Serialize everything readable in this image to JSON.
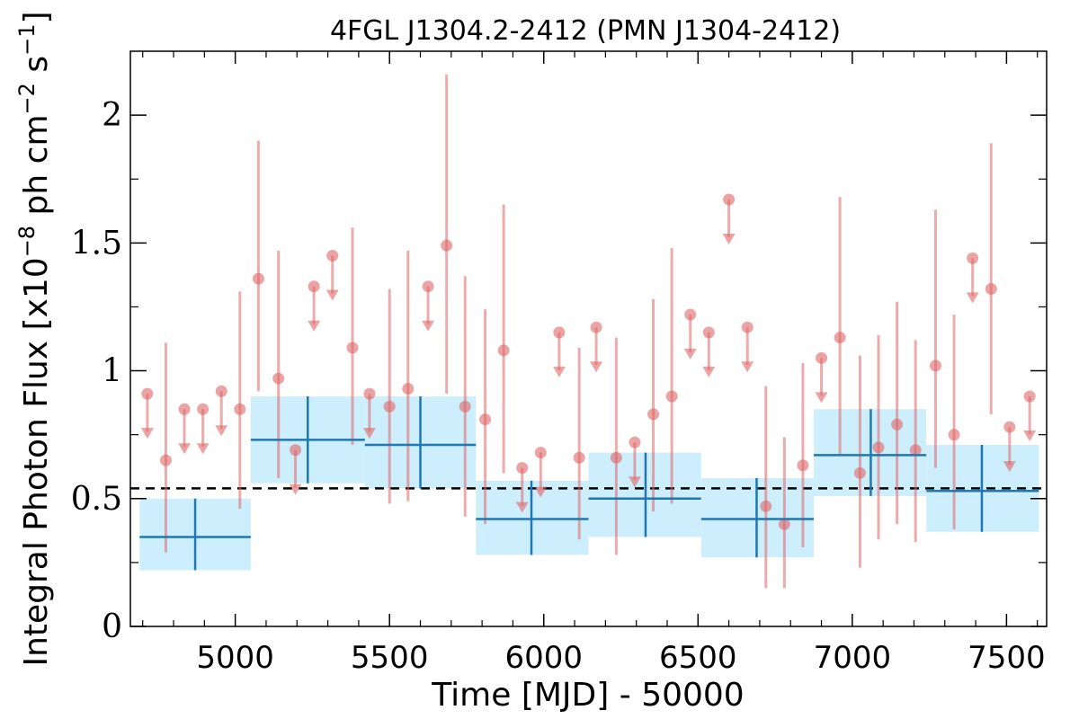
{
  "chart_data": {
    "type": "scatter",
    "title": "4FGL J1304.2-2412 (PMN J1304-2412)",
    "xlabel": "Time [MJD] - 50000",
    "ylabel": "Integral Photon Flux [x10",
    "ylabel_exp1": "−8",
    "ylabel_mid": " ph cm",
    "ylabel_exp2": "−2",
    "ylabel_mid2": " s",
    "ylabel_exp3": "−1",
    "ylabel_end": "]",
    "xlim": [
      4660,
      7630
    ],
    "ylim": [
      0,
      2.25
    ],
    "x_ticks": [
      5000,
      5500,
      6000,
      6500,
      7000,
      7500
    ],
    "x_tick_labels": [
      "5000",
      "5500",
      "6000",
      "6500",
      "7000",
      "7500"
    ],
    "y_ticks": [
      0,
      0.5,
      1,
      1.5,
      2
    ],
    "y_tick_labels": [
      "0",
      "0.5",
      "1",
      "1.5",
      "2"
    ],
    "reference_line": 0.54,
    "colors": {
      "points": "#e06666",
      "bins_fill": "#cdeefc",
      "bins_line": "#1f77b4",
      "reference": "#000000"
    },
    "series": [
      {
        "name": "",
        "kind": "detections",
        "points": [
          {
            "x": 4775,
            "y": 0.65,
            "lo": 0.29,
            "hi": 1.11
          },
          {
            "x": 5015,
            "y": 0.85,
            "lo": 0.46,
            "hi": 1.31
          },
          {
            "x": 5075,
            "y": 1.36,
            "lo": 0.92,
            "hi": 1.9
          },
          {
            "x": 5140,
            "y": 0.97,
            "lo": 0.58,
            "hi": 1.47
          },
          {
            "x": 5380,
            "y": 1.09,
            "lo": 0.71,
            "hi": 1.56
          },
          {
            "x": 5500,
            "y": 0.86,
            "lo": 0.48,
            "hi": 1.32
          },
          {
            "x": 5560,
            "y": 0.93,
            "lo": 0.49,
            "hi": 1.47
          },
          {
            "x": 5685,
            "y": 1.49,
            "lo": 0.91,
            "hi": 2.16
          },
          {
            "x": 5745,
            "y": 0.86,
            "lo": 0.43,
            "hi": 1.37
          },
          {
            "x": 5810,
            "y": 0.81,
            "lo": 0.4,
            "hi": 1.24
          },
          {
            "x": 5870,
            "y": 1.08,
            "lo": 0.6,
            "hi": 1.65
          },
          {
            "x": 6115,
            "y": 0.66,
            "lo": 0.34,
            "hi": 1.09
          },
          {
            "x": 6235,
            "y": 0.66,
            "lo": 0.28,
            "hi": 1.13
          },
          {
            "x": 6355,
            "y": 0.83,
            "lo": 0.45,
            "hi": 1.28
          },
          {
            "x": 6415,
            "y": 0.9,
            "lo": 0.48,
            "hi": 1.48
          },
          {
            "x": 6720,
            "y": 0.47,
            "lo": 0.15,
            "hi": 0.94
          },
          {
            "x": 6780,
            "y": 0.4,
            "lo": 0.15,
            "hi": 0.74
          },
          {
            "x": 6840,
            "y": 0.63,
            "lo": 0.31,
            "hi": 1.03
          },
          {
            "x": 6960,
            "y": 1.13,
            "lo": 0.67,
            "hi": 1.68
          },
          {
            "x": 7025,
            "y": 0.6,
            "lo": 0.23,
            "hi": 1.06
          },
          {
            "x": 7085,
            "y": 0.7,
            "lo": 0.34,
            "hi": 1.14
          },
          {
            "x": 7145,
            "y": 0.79,
            "lo": 0.4,
            "hi": 1.27
          },
          {
            "x": 7205,
            "y": 0.69,
            "lo": 0.33,
            "hi": 1.12
          },
          {
            "x": 7270,
            "y": 1.02,
            "lo": 0.62,
            "hi": 1.63
          },
          {
            "x": 7330,
            "y": 0.75,
            "lo": 0.38,
            "hi": 1.22
          },
          {
            "x": 7450,
            "y": 1.32,
            "lo": 0.83,
            "hi": 1.89
          }
        ]
      },
      {
        "name": "",
        "kind": "upper_limits",
        "points": [
          {
            "x": 4715,
            "y": 0.91
          },
          {
            "x": 4835,
            "y": 0.85
          },
          {
            "x": 4895,
            "y": 0.85
          },
          {
            "x": 4955,
            "y": 0.92
          },
          {
            "x": 5195,
            "y": 0.69
          },
          {
            "x": 5255,
            "y": 1.33
          },
          {
            "x": 5315,
            "y": 1.45
          },
          {
            "x": 5435,
            "y": 0.91
          },
          {
            "x": 5625,
            "y": 1.33
          },
          {
            "x": 5930,
            "y": 0.62
          },
          {
            "x": 5990,
            "y": 0.68
          },
          {
            "x": 6050,
            "y": 1.15
          },
          {
            "x": 6170,
            "y": 1.17
          },
          {
            "x": 6295,
            "y": 0.72
          },
          {
            "x": 6475,
            "y": 1.22
          },
          {
            "x": 6535,
            "y": 1.15
          },
          {
            "x": 6600,
            "y": 1.67
          },
          {
            "x": 6660,
            "y": 1.17
          },
          {
            "x": 6900,
            "y": 1.05
          },
          {
            "x": 7390,
            "y": 1.44
          },
          {
            "x": 7510,
            "y": 0.78
          },
          {
            "x": 7575,
            "y": 0.9
          }
        ]
      },
      {
        "name": "",
        "kind": "bins",
        "points": [
          {
            "x0": 4690,
            "x1": 5050,
            "xc": 4870,
            "y": 0.35,
            "lo": 0.22,
            "hi": 0.5
          },
          {
            "x0": 5050,
            "x1": 5420,
            "xc": 5235,
            "y": 0.73,
            "lo": 0.56,
            "hi": 0.9
          },
          {
            "x0": 5420,
            "x1": 5780,
            "xc": 5600,
            "y": 0.71,
            "lo": 0.54,
            "hi": 0.9
          },
          {
            "x0": 5780,
            "x1": 6145,
            "xc": 5960,
            "y": 0.42,
            "lo": 0.28,
            "hi": 0.57
          },
          {
            "x0": 6145,
            "x1": 6510,
            "xc": 6330,
            "y": 0.5,
            "lo": 0.35,
            "hi": 0.68
          },
          {
            "x0": 6510,
            "x1": 6875,
            "xc": 6690,
            "y": 0.42,
            "lo": 0.27,
            "hi": 0.58
          },
          {
            "x0": 6875,
            "x1": 7240,
            "xc": 7060,
            "y": 0.67,
            "lo": 0.51,
            "hi": 0.85
          },
          {
            "x0": 7240,
            "x1": 7605,
            "xc": 7420,
            "y": 0.53,
            "lo": 0.37,
            "hi": 0.71
          }
        ]
      }
    ]
  }
}
